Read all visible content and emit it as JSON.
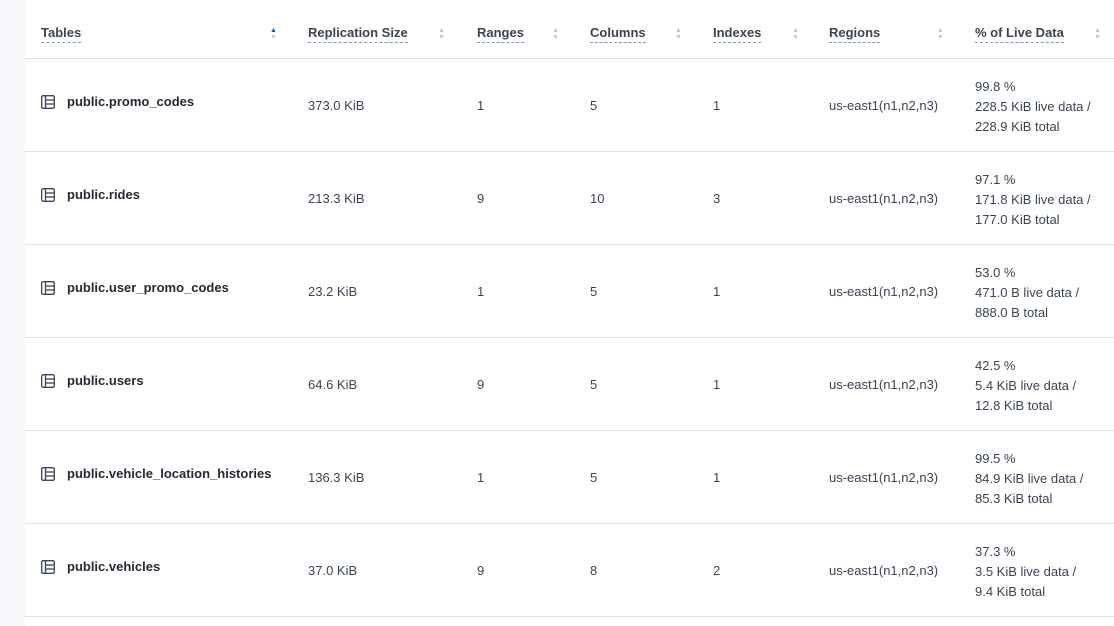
{
  "columns": [
    {
      "label": "Tables",
      "sort": "ascending"
    },
    {
      "label": "Replication Size",
      "sort": "none"
    },
    {
      "label": "Ranges",
      "sort": "none"
    },
    {
      "label": "Columns",
      "sort": "none"
    },
    {
      "label": "Indexes",
      "sort": "none"
    },
    {
      "label": "Regions",
      "sort": "none"
    },
    {
      "label": "% of Live Data",
      "sort": "none"
    }
  ],
  "rows": [
    {
      "name": "public.promo_codes",
      "size": "373.0 KiB",
      "ranges": "1",
      "columns": "5",
      "indexes": "1",
      "regions": "us-east1(n1,n2,n3)",
      "pct": "99.8 %",
      "live": "228.5 KiB live data /",
      "total": "228.9 KiB total"
    },
    {
      "name": "public.rides",
      "size": "213.3 KiB",
      "ranges": "9",
      "columns": "10",
      "indexes": "3",
      "regions": "us-east1(n1,n2,n3)",
      "pct": "97.1 %",
      "live": "171.8 KiB live data /",
      "total": "177.0 KiB total"
    },
    {
      "name": "public.user_promo_codes",
      "size": "23.2 KiB",
      "ranges": "1",
      "columns": "5",
      "indexes": "1",
      "regions": "us-east1(n1,n2,n3)",
      "pct": "53.0 %",
      "live": "471.0 B live data /",
      "total": "888.0 B total"
    },
    {
      "name": "public.users",
      "size": "64.6 KiB",
      "ranges": "9",
      "columns": "5",
      "indexes": "1",
      "regions": "us-east1(n1,n2,n3)",
      "pct": "42.5 %",
      "live": "5.4 KiB live data /",
      "total": "12.8 KiB total"
    },
    {
      "name": "public.vehicle_location_histories",
      "size": "136.3 KiB",
      "ranges": "1",
      "columns": "5",
      "indexes": "1",
      "regions": "us-east1(n1,n2,n3)",
      "pct": "99.5 %",
      "live": "84.9 KiB live data /",
      "total": "85.3 KiB total"
    },
    {
      "name": "public.vehicles",
      "size": "37.0 KiB",
      "ranges": "9",
      "columns": "8",
      "indexes": "2",
      "regions": "us-east1(n1,n2,n3)",
      "pct": "37.3 %",
      "live": "3.5 KiB live data /",
      "total": "9.4 KiB total"
    }
  ],
  "colors": {
    "accent": "#0055ff",
    "border": "#dde2ec"
  }
}
